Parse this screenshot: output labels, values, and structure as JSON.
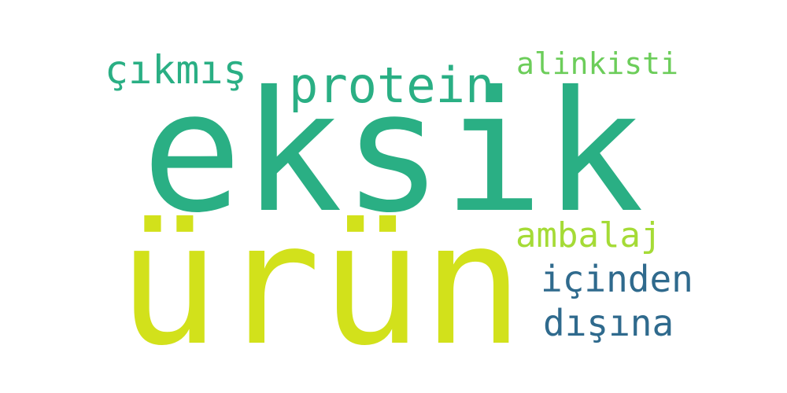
{
  "words": [
    {
      "key": "eksik",
      "text": "eksik",
      "color": "#2aaf84"
    },
    {
      "key": "urun",
      "text": "ürün",
      "color": "#d2e11b"
    },
    {
      "key": "protein",
      "text": "protein",
      "color": "#2aaf84"
    },
    {
      "key": "cikmis",
      "text": "çıkmış",
      "color": "#2aaf84"
    },
    {
      "key": "alinkisti",
      "text": "alinkisti",
      "color": "#6ccd5a"
    },
    {
      "key": "ambalaj",
      "text": "ambalaj",
      "color": "#a5db36"
    },
    {
      "key": "icinden",
      "text": "içinden",
      "color": "#2f6a8d"
    },
    {
      "key": "disina",
      "text": "dışına",
      "color": "#2f6a8d"
    }
  ]
}
